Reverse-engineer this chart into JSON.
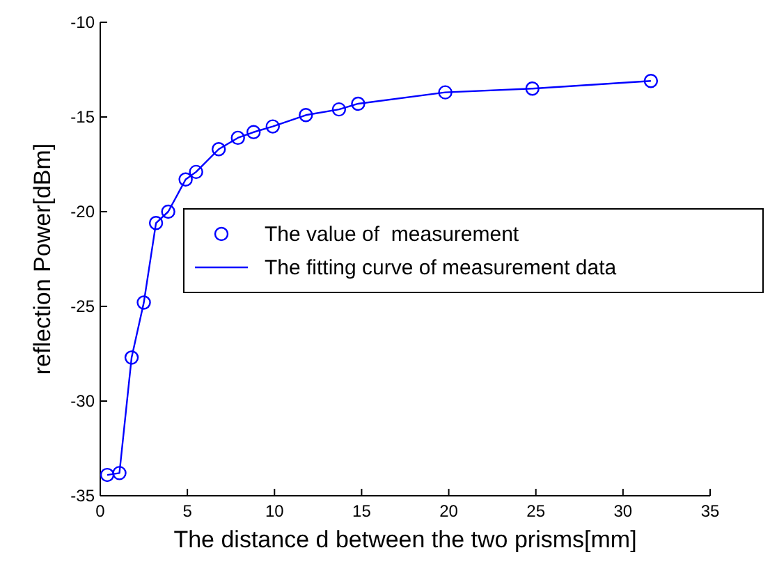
{
  "chart_data": {
    "type": "scatter",
    "xlabel": "The distance d between the two prisms[mm]",
    "ylabel": "reflection Power[dBm]",
    "x": [
      0.4,
      1.1,
      1.8,
      2.5,
      3.2,
      3.9,
      4.9,
      5.5,
      6.8,
      7.9,
      8.8,
      9.9,
      11.8,
      13.7,
      14.8,
      19.8,
      24.8,
      31.6
    ],
    "series": [
      {
        "name": "The value of  measurement",
        "type": "scatter",
        "color": "#0000ff",
        "marker": "circle",
        "values": [
          -33.9,
          -33.8,
          -27.7,
          -24.8,
          -20.6,
          -20.0,
          -18.3,
          -17.9,
          -16.7,
          -16.1,
          -15.8,
          -15.5,
          -14.9,
          -14.6,
          -14.3,
          -13.7,
          -13.5,
          -13.1
        ]
      },
      {
        "name": "The fitting curve of measurement data",
        "type": "line",
        "color": "#0000ff",
        "line_style": "solid",
        "values": [
          -33.9,
          -33.8,
          -27.7,
          -24.8,
          -20.6,
          -20.0,
          -18.3,
          -17.9,
          -16.7,
          -16.1,
          -15.8,
          -15.5,
          -14.9,
          -14.6,
          -14.3,
          -13.7,
          -13.5,
          -13.1
        ]
      }
    ],
    "xlim": [
      0,
      35
    ],
    "xticks": [
      0,
      5,
      10,
      15,
      20,
      25,
      30,
      35
    ],
    "ylim": [
      -35,
      -10
    ],
    "yticks": [
      -35,
      -30,
      -25,
      -20,
      -15,
      -10
    ],
    "grid": false,
    "legend": "right"
  }
}
